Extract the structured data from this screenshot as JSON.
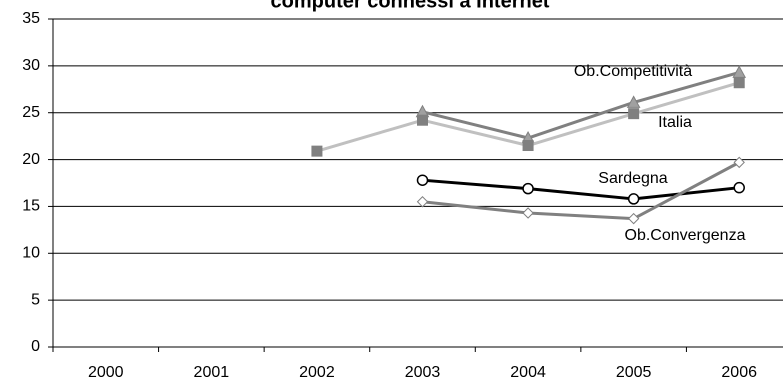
{
  "chart_data": {
    "type": "line",
    "title": "computer connessi a Internet",
    "xlabel": "",
    "ylabel": "",
    "categories": [
      "2000",
      "2001",
      "2002",
      "2003",
      "2004",
      "2005",
      "2006"
    ],
    "ylim": [
      0,
      35
    ],
    "yticks": [
      "0",
      "5",
      "10",
      "15",
      "20",
      "25",
      "30",
      "35"
    ],
    "grid": true,
    "legend": "none",
    "series": [
      {
        "name": "Ob.Competitività",
        "values": [
          null,
          null,
          null,
          25.1,
          22.3,
          26.1,
          29.3
        ],
        "color": "#808080",
        "marker": "triangle"
      },
      {
        "name": "Italia",
        "values": [
          null,
          null,
          20.9,
          24.2,
          21.5,
          24.9,
          28.2
        ],
        "color": "#c0c0c0",
        "marker": "square"
      },
      {
        "name": "Sardegna",
        "values": [
          null,
          null,
          null,
          17.8,
          16.9,
          15.8,
          17.0
        ],
        "color": "#000000",
        "marker": "circle"
      },
      {
        "name": "Ob.Convergenza",
        "values": [
          null,
          null,
          null,
          15.5,
          14.3,
          13.7,
          19.7
        ],
        "color": "#808080",
        "marker": "diamond"
      }
    ]
  }
}
